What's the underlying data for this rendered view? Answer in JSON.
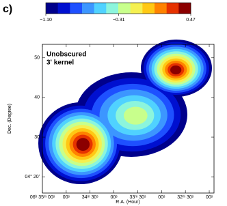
{
  "chart_data": {
    "type": "contour",
    "panel_label": "c)",
    "annotation": [
      "Unobscured",
      "3' kernel"
    ],
    "xlabel": "R.A. (Hour)",
    "ylabel": "Dec. (Degree)",
    "xlim": [
      2100,
      1884
    ],
    "ylim": [
      15.9,
      53.4
    ],
    "xticks": [
      {
        "value": 2100,
        "label": "06ʰ 35ᵐ 00ˢ"
      },
      {
        "value": 2070,
        "label": "00ˢ"
      },
      {
        "value": 2040,
        "label": "34ᵐ 30ˢ"
      },
      {
        "value": 2010,
        "label": "00ˢ"
      },
      {
        "value": 1980,
        "label": "33ᵐ 30ˢ"
      },
      {
        "value": 1950,
        "label": "00ˢ"
      },
      {
        "value": 1920,
        "label": "32ᵐ 30ˢ"
      },
      {
        "value": 1890,
        "label": "00ˢ"
      }
    ],
    "yticks": [
      50,
      40,
      30,
      {
        "value": 20,
        "label": "04° 20'"
      }
    ],
    "colorbar": {
      "clim": [
        -1.1,
        0.47
      ],
      "ticks": [
        {
          "value": -1.1,
          "label": "−1.10"
        },
        {
          "value": -0.31,
          "label": "−0.31"
        },
        {
          "value": 0.47,
          "label": "0.47"
        }
      ],
      "colors": [
        "#00008b",
        "#0010d0",
        "#1e50ff",
        "#3c96ff",
        "#50d2ff",
        "#8cf5dc",
        "#c8ff8c",
        "#f5f050",
        "#ffc814",
        "#ff8200",
        "#e63200",
        "#8b0000"
      ]
    }
  }
}
